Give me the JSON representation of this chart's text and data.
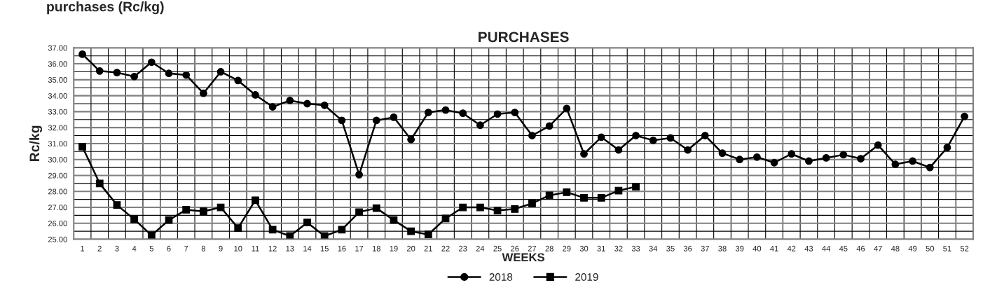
{
  "chart_data": {
    "type": "line",
    "title": "PURCHASES",
    "xlabel": "WEEKS",
    "ylabel": "Rc/kg",
    "annotations": [
      "purchases (Rc/kg)"
    ],
    "categories": [
      "1",
      "2",
      "3",
      "4",
      "5",
      "6",
      "7",
      "8",
      "9",
      "10",
      "11",
      "12",
      "13",
      "14",
      "15",
      "16",
      "17",
      "18",
      "19",
      "20",
      "21",
      "22",
      "23",
      "24",
      "25",
      "26",
      "27",
      "28",
      "29",
      "30",
      "31",
      "32",
      "33",
      "34",
      "35",
      "36",
      "37",
      "38",
      "39",
      "40",
      "41",
      "42",
      "43",
      "44",
      "45",
      "46",
      "47",
      "48",
      "49",
      "50",
      "51",
      "52"
    ],
    "series": [
      {
        "name": "2018",
        "color": "#000000",
        "marker": "circle",
        "values": [
          36.6,
          35.55,
          35.45,
          35.2,
          36.1,
          35.4,
          35.3,
          34.15,
          35.5,
          34.95,
          34.05,
          33.3,
          33.7,
          33.5,
          33.4,
          32.45,
          29.05,
          32.45,
          32.65,
          31.25,
          32.95,
          33.1,
          32.9,
          32.15,
          32.85,
          32.95,
          31.5,
          32.1,
          33.2,
          30.35,
          31.4,
          30.6,
          31.5,
          31.2,
          31.35,
          30.6,
          31.5,
          30.4,
          30.0,
          30.15,
          29.8,
          30.35,
          29.9,
          30.1,
          30.3,
          30.05,
          30.9,
          29.7,
          29.9,
          29.5,
          30.75,
          32.7
        ]
      },
      {
        "name": "2019",
        "color": "#000000",
        "marker": "square",
        "values": [
          30.8,
          28.5,
          27.15,
          26.25,
          25.25,
          26.2,
          26.85,
          26.75,
          27.0,
          25.7,
          27.45,
          25.6,
          25.2,
          26.05,
          25.2,
          25.6,
          26.7,
          26.95,
          26.2,
          25.5,
          25.3,
          26.3,
          27.0,
          27.0,
          26.8,
          26.9,
          27.25,
          27.75,
          27.95,
          27.6,
          27.6,
          28.05,
          28.3,
          null,
          null,
          null,
          null,
          null,
          null,
          null,
          null,
          null,
          null,
          null,
          null,
          null,
          null,
          null,
          null,
          null,
          null,
          null
        ]
      }
    ],
    "ylim": [
      25,
      37
    ],
    "yticks": [
      {
        "value": 25,
        "label": "25.00"
      },
      {
        "value": 26,
        "label": "26.00"
      },
      {
        "value": 27,
        "label": "27.00"
      },
      {
        "value": 28,
        "label": "28.00"
      },
      {
        "value": 29,
        "label": "29.00"
      },
      {
        "value": 30,
        "label": "30.00"
      },
      {
        "value": 31,
        "label": "31.00"
      },
      {
        "value": 32,
        "label": "32.00"
      },
      {
        "value": 33,
        "label": "33.00"
      },
      {
        "value": 34,
        "label": "34.00"
      },
      {
        "value": 35,
        "label": "35.00"
      },
      {
        "value": 36,
        "label": "36.00"
      },
      {
        "value": 37,
        "label": "37.00"
      }
    ],
    "grid": true,
    "legend": "bottom",
    "line_style": "solid"
  }
}
